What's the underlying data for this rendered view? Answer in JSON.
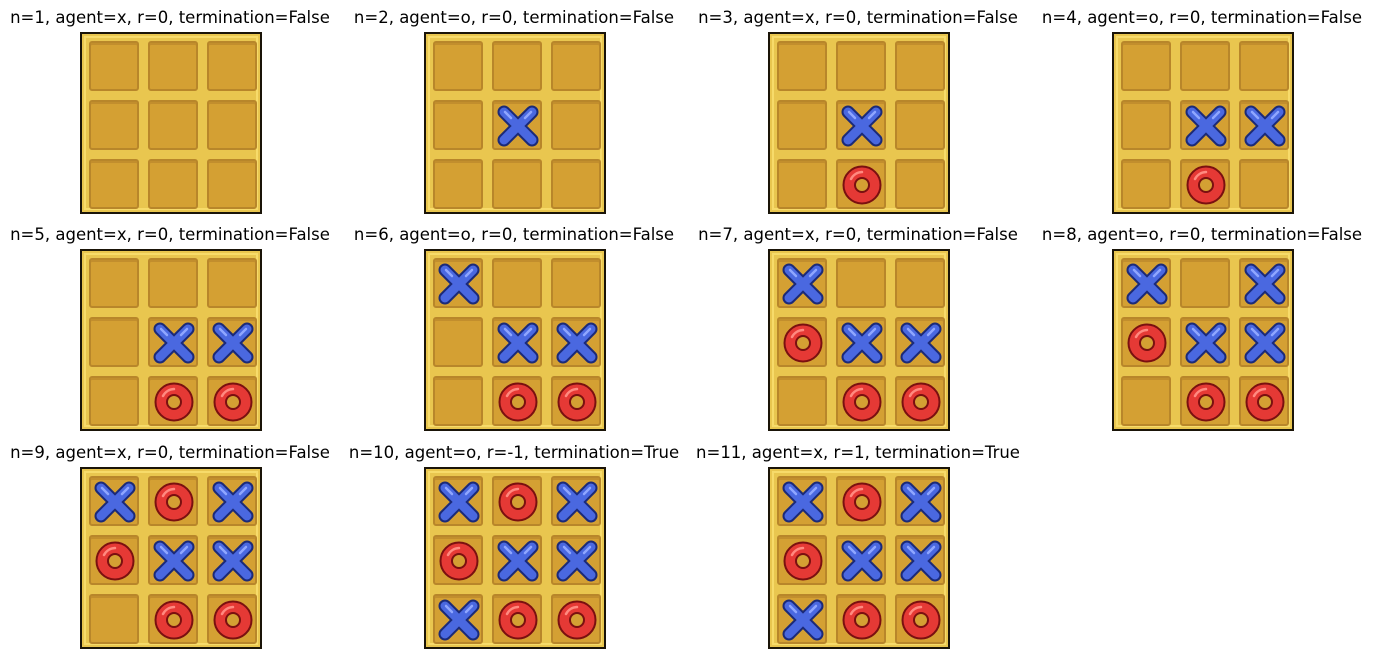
{
  "colors": {
    "background": "#ffffff",
    "board": "#e9c64f",
    "cell": "#d4a033",
    "x_mark": "#4a68e0",
    "o_mark": "#e53935"
  },
  "icons": {
    "x": "x-mark-icon",
    "o": "o-mark-icon"
  },
  "panels": [
    {
      "title": "n=1, agent=x, r=0, termination=False",
      "board": [
        "",
        "",
        "",
        "",
        "",
        "",
        "",
        "",
        ""
      ]
    },
    {
      "title": "n=2, agent=o, r=0, termination=False",
      "board": [
        "",
        "",
        "",
        "",
        "x",
        "",
        "",
        "",
        ""
      ]
    },
    {
      "title": "n=3, agent=x, r=0, termination=False",
      "board": [
        "",
        "",
        "",
        "",
        "x",
        "",
        "",
        "o",
        ""
      ]
    },
    {
      "title": "n=4, agent=o, r=0, termination=False",
      "board": [
        "",
        "",
        "",
        "",
        "x",
        "x",
        "",
        "o",
        ""
      ]
    },
    {
      "title": "n=5, agent=x, r=0, termination=False",
      "board": [
        "",
        "",
        "",
        "",
        "x",
        "x",
        "",
        "o",
        "o"
      ]
    },
    {
      "title": "n=6, agent=o, r=0, termination=False",
      "board": [
        "x",
        "",
        "",
        "",
        "x",
        "x",
        "",
        "o",
        "o"
      ]
    },
    {
      "title": "n=7, agent=x, r=0, termination=False",
      "board": [
        "x",
        "",
        "",
        "o",
        "x",
        "x",
        "",
        "o",
        "o"
      ]
    },
    {
      "title": "n=8, agent=o, r=0, termination=False",
      "board": [
        "x",
        "",
        "x",
        "o",
        "x",
        "x",
        "",
        "o",
        "o"
      ]
    },
    {
      "title": "n=9, agent=x, r=0, termination=False",
      "board": [
        "x",
        "o",
        "x",
        "o",
        "x",
        "x",
        "",
        "o",
        "o"
      ]
    },
    {
      "title": "n=10, agent=o, r=-1, termination=True",
      "board": [
        "x",
        "o",
        "x",
        "o",
        "x",
        "x",
        "x",
        "o",
        "o"
      ]
    },
    {
      "title": "n=11, agent=x, r=1, termination=True",
      "board": [
        "x",
        "o",
        "x",
        "o",
        "x",
        "x",
        "x",
        "o",
        "o"
      ]
    }
  ]
}
